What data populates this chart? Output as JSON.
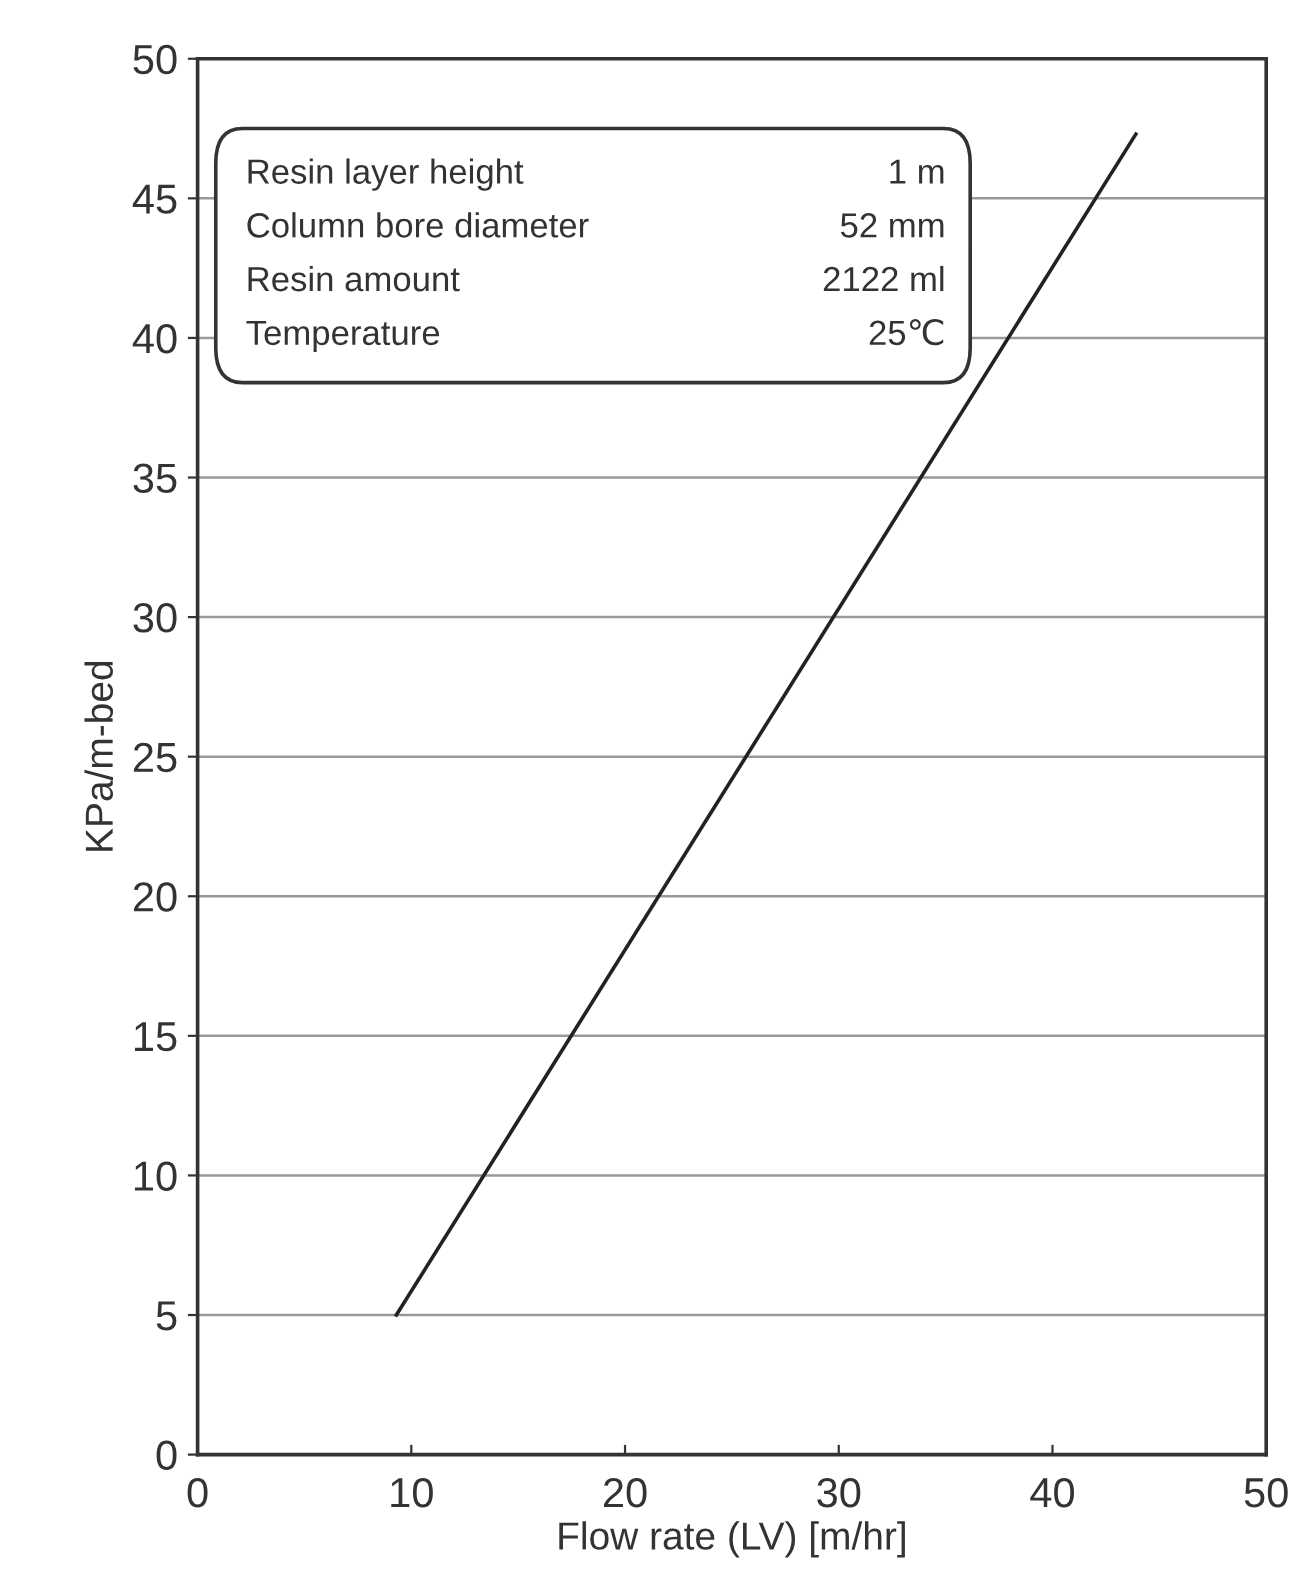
{
  "chart_data": {
    "type": "line",
    "xlabel": "Flow rate (LV) [m/hr]",
    "ylabel": "KPa/m-bed",
    "x": [
      9.3,
      43.9
    ],
    "series": [
      {
        "color": "#222222",
        "values": [
          5,
          47.3
        ]
      }
    ],
    "xlim": [
      0,
      50
    ],
    "ylim": [
      0,
      50
    ],
    "xticks": [
      0,
      10,
      20,
      30,
      40,
      50
    ],
    "yticks": [
      0,
      5,
      10,
      15,
      20,
      25,
      30,
      35,
      40,
      45,
      50
    ],
    "grid": "y",
    "marker": "none",
    "line_style": "solid",
    "annotations": [
      "Resin layer height",
      "1 m",
      "Column bore diameter",
      "52 mm",
      "Resin amount",
      "2122 ml",
      "Temperature",
      "25℃"
    ]
  }
}
